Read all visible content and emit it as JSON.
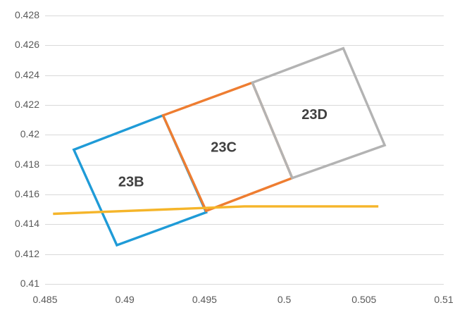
{
  "chart_data": {
    "type": "scatter",
    "xlim": [
      0.485,
      0.51
    ],
    "ylim": [
      0.41,
      0.428
    ],
    "x_ticks": [
      {
        "value": 0.485,
        "label": "0.485"
      },
      {
        "value": 0.49,
        "label": "0.49"
      },
      {
        "value": 0.495,
        "label": "0.495"
      },
      {
        "value": 0.5,
        "label": "0.5"
      },
      {
        "value": 0.505,
        "label": "0.505"
      },
      {
        "value": 0.51,
        "label": "0.51"
      }
    ],
    "y_ticks": [
      {
        "value": 0.41,
        "label": "0.41"
      },
      {
        "value": 0.412,
        "label": "0.412"
      },
      {
        "value": 0.414,
        "label": "0.414"
      },
      {
        "value": 0.416,
        "label": "0.416"
      },
      {
        "value": 0.418,
        "label": "0.418"
      },
      {
        "value": 0.42,
        "label": "0.42"
      },
      {
        "value": 0.422,
        "label": "0.422"
      },
      {
        "value": 0.424,
        "label": "0.424"
      },
      {
        "value": 0.426,
        "label": "0.426"
      },
      {
        "value": 0.428,
        "label": "0.428"
      }
    ],
    "grid": "horizontal",
    "legend": "none",
    "series": [
      {
        "color": "#1f9bd7",
        "closed": true,
        "points": [
          [
            0.4868,
            0.419
          ],
          [
            0.4924,
            0.4213
          ],
          [
            0.4951,
            0.4148
          ],
          [
            0.4895,
            0.4126
          ]
        ]
      },
      {
        "color": "#ee7d31",
        "closed": true,
        "points": [
          [
            0.4924,
            0.4213
          ],
          [
            0.498,
            0.4235
          ],
          [
            0.5005,
            0.4171
          ],
          [
            0.4951,
            0.4149
          ]
        ]
      },
      {
        "color": "#b3b3b3",
        "closed": true,
        "points": [
          [
            0.498,
            0.4235
          ],
          [
            0.5037,
            0.4258
          ],
          [
            0.5063,
            0.4193
          ],
          [
            0.5005,
            0.4171
          ]
        ]
      },
      {
        "color": "#f5b52a",
        "closed": false,
        "points": [
          [
            0.4855,
            0.4147
          ],
          [
            0.4975,
            0.4152
          ],
          [
            0.5059,
            0.4152
          ]
        ]
      }
    ],
    "annotations": [
      {
        "text": "23B",
        "x": 0.4904,
        "y": 0.4168
      },
      {
        "text": "23C",
        "x": 0.4962,
        "y": 0.4191
      },
      {
        "text": "23D",
        "x": 0.5019,
        "y": 0.4213
      }
    ]
  }
}
